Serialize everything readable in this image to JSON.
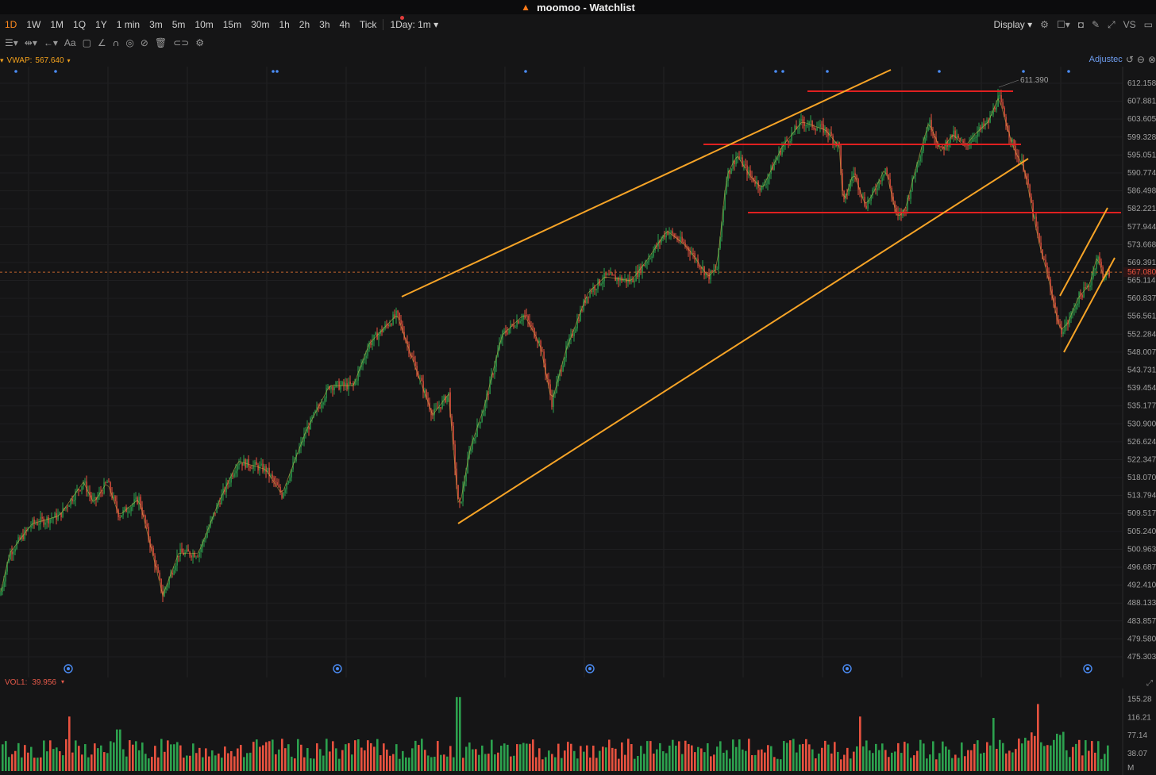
{
  "window": {
    "title": "moomoo - Watchlist"
  },
  "toolbar": {
    "timeframes": [
      "1D",
      "1W",
      "1M",
      "1Q",
      "1Y",
      "1 min",
      "3m",
      "5m",
      "10m",
      "15m",
      "30m",
      "1h",
      "2h",
      "3h",
      "4h",
      "Tick"
    ],
    "active_timeframe": "1D",
    "range_select": "1Day: 1m",
    "display_label": "Display",
    "vs_label": "VS"
  },
  "indicator": {
    "vwap_label": "VWAP:",
    "vwap_value": "567.640"
  },
  "adjust_label": "Adjustec",
  "price_axis": {
    "ticks": [
      "612.158",
      "607.881",
      "603.605",
      "599.328",
      "595.051",
      "590.774",
      "586.498",
      "582.221",
      "577.944",
      "573.668",
      "569.391",
      "565.114",
      "560.837",
      "556.561",
      "552.284",
      "548.007",
      "543.731",
      "539.454",
      "535.177",
      "530.900",
      "526.624",
      "522.347",
      "518.070",
      "513.794",
      "509.517",
      "505.240",
      "500.963",
      "496.687",
      "492.410",
      "488.133",
      "483.857",
      "479.580",
      "475.303"
    ],
    "current_price": "567.080",
    "high_label": "611.390"
  },
  "volume": {
    "label": "VOL1:",
    "value": "39.956",
    "ticks": [
      "155.28",
      "116.21",
      "77.14",
      "38.07"
    ],
    "unit": "M"
  },
  "colors": {
    "up": "#2ca14e",
    "down": "#e8523f",
    "trend": "#f7a427",
    "level": "#e02020",
    "accent": "#ff8a1e"
  },
  "chart_data": {
    "type": "candlestick",
    "y_range": [
      475.303,
      612.158
    ],
    "path": [
      [
        0,
        490
      ],
      [
        12,
        500
      ],
      [
        40,
        507
      ],
      [
        75,
        509
      ],
      [
        105,
        517
      ],
      [
        118,
        512
      ],
      [
        135,
        517
      ],
      [
        150,
        509
      ],
      [
        175,
        513
      ],
      [
        205,
        490
      ],
      [
        225,
        500
      ],
      [
        250,
        500
      ],
      [
        275,
        512
      ],
      [
        300,
        522
      ],
      [
        335,
        520
      ],
      [
        355,
        514
      ],
      [
        385,
        529
      ],
      [
        415,
        540
      ],
      [
        445,
        540
      ],
      [
        465,
        550
      ],
      [
        500,
        557
      ],
      [
        520,
        546
      ],
      [
        545,
        533
      ],
      [
        565,
        538
      ],
      [
        578,
        510
      ],
      [
        592,
        525
      ],
      [
        610,
        535
      ],
      [
        632,
        552
      ],
      [
        660,
        557
      ],
      [
        680,
        550
      ],
      [
        695,
        536
      ],
      [
        712,
        548
      ],
      [
        740,
        562
      ],
      [
        762,
        566
      ],
      [
        795,
        565
      ],
      [
        815,
        570
      ],
      [
        840,
        577
      ],
      [
        860,
        574
      ],
      [
        870,
        572
      ],
      [
        892,
        566
      ],
      [
        903,
        568
      ],
      [
        915,
        590
      ],
      [
        928,
        595
      ],
      [
        945,
        590
      ],
      [
        960,
        587
      ],
      [
        985,
        597
      ],
      [
        1010,
        603
      ],
      [
        1040,
        601
      ],
      [
        1057,
        597
      ],
      [
        1062,
        583
      ],
      [
        1075,
        591
      ],
      [
        1090,
        583
      ],
      [
        1100,
        586
      ],
      [
        1115,
        592
      ],
      [
        1130,
        580
      ],
      [
        1140,
        582
      ],
      [
        1155,
        593
      ],
      [
        1170,
        603
      ],
      [
        1185,
        596
      ],
      [
        1200,
        600
      ],
      [
        1215,
        597
      ],
      [
        1228,
        600
      ],
      [
        1245,
        603
      ],
      [
        1258,
        609
      ],
      [
        1268,
        602
      ],
      [
        1278,
        596
      ],
      [
        1290,
        592
      ],
      [
        1300,
        582
      ],
      [
        1310,
        573
      ],
      [
        1320,
        566
      ],
      [
        1335,
        553
      ],
      [
        1345,
        555
      ],
      [
        1358,
        561
      ],
      [
        1372,
        564
      ],
      [
        1382,
        571
      ],
      [
        1390,
        566
      ],
      [
        1398,
        567
      ]
    ],
    "trendlines": [
      [
        506,
        374,
        1122,
        88
      ],
      [
        577,
        660,
        1295,
        200
      ],
      [
        1335,
        373,
        1395,
        262
      ],
      [
        1340,
        444,
        1404,
        325
      ]
    ],
    "levels": [
      [
        1017,
        115,
        1276,
        115
      ],
      [
        886,
        182,
        1286,
        182
      ],
      [
        942,
        268,
        1412,
        268
      ]
    ],
    "volume_range": [
      0,
      170
    ],
    "events_at": [
      86,
      425,
      743,
      1067,
      1370
    ]
  }
}
